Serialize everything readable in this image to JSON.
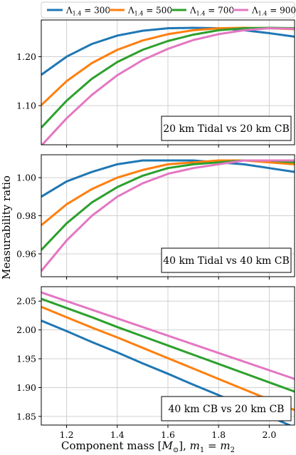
{
  "figure": {
    "ylabel": "Measurability ratio",
    "xlabel_prefix": "Component mass [",
    "xlabel_sym": "M",
    "xlabel_sub": "⊙",
    "xlabel_mid": "], ",
    "xlabel_m": "m",
    "xlabel_sub1": "1",
    "xlabel_eq": " = ",
    "xlabel_sub2": "2"
  },
  "legend": {
    "entries": [
      {
        "sym": "Λ",
        "sub": "1.4",
        "text": " = 300",
        "color": "#1f77b4"
      },
      {
        "sym": "Λ",
        "sub": "1.4",
        "text": " = 500",
        "color": "#ff7f0e"
      },
      {
        "sym": "Λ",
        "sub": "1.4",
        "text": " = 700",
        "color": "#2ca02c"
      },
      {
        "sym": "Λ",
        "sub": "1.4",
        "text": " = 900",
        "color": "#e377c2"
      }
    ]
  },
  "chart_data": [
    {
      "type": "line",
      "title": "20 km Tidal vs 20 km CB",
      "xlim": [
        1.1,
        2.1
      ],
      "ylim": [
        1.02,
        1.275
      ],
      "xticks": [
        1.2,
        1.4,
        1.6,
        1.8,
        2.0
      ],
      "xticklabels": [
        "1.2",
        "1.4",
        "1.6",
        "1.8",
        "2.0"
      ],
      "yticks": [
        1.1,
        1.2
      ],
      "yticklabels": [
        "1.10",
        "1.20"
      ],
      "grid": true,
      "annotation_position": "bottom-right",
      "x": [
        1.1,
        1.2,
        1.3,
        1.4,
        1.5,
        1.6,
        1.7,
        1.8,
        1.9,
        2.0,
        2.1
      ],
      "series": [
        {
          "name": "Λ1.4 = 300",
          "color": "#1f77b4",
          "values": [
            1.163,
            1.2,
            1.226,
            1.243,
            1.253,
            1.258,
            1.259,
            1.258,
            1.254,
            1.248,
            1.241
          ]
        },
        {
          "name": "Λ1.4 = 500",
          "color": "#ff7f0e",
          "values": [
            1.101,
            1.15,
            1.187,
            1.214,
            1.233,
            1.246,
            1.254,
            1.258,
            1.259,
            1.258,
            1.256
          ]
        },
        {
          "name": "Λ1.4 = 700",
          "color": "#2ca02c",
          "values": [
            1.055,
            1.11,
            1.155,
            1.189,
            1.214,
            1.232,
            1.245,
            1.254,
            1.258,
            1.259,
            1.258
          ]
        },
        {
          "name": "Λ1.4 = 900",
          "color": "#e377c2",
          "values": [
            1.018,
            1.074,
            1.122,
            1.162,
            1.193,
            1.216,
            1.234,
            1.246,
            1.254,
            1.258,
            1.257
          ]
        }
      ]
    },
    {
      "type": "line",
      "title": "40 km Tidal vs 40 km CB",
      "xlim": [
        1.1,
        2.1
      ],
      "ylim": [
        0.948,
        1.012
      ],
      "xticks": [
        1.2,
        1.4,
        1.6,
        1.8,
        2.0
      ],
      "xticklabels": [
        "1.2",
        "1.4",
        "1.6",
        "1.8",
        "2.0"
      ],
      "yticks": [
        0.96,
        0.98,
        1.0
      ],
      "yticklabels": [
        "0.96",
        "0.98",
        "1.00"
      ],
      "grid": true,
      "annotation_position": "bottom-right",
      "x": [
        1.1,
        1.2,
        1.3,
        1.4,
        1.5,
        1.6,
        1.7,
        1.8,
        1.9,
        2.0,
        2.1
      ],
      "series": [
        {
          "name": "Λ1.4 = 300",
          "color": "#1f77b4",
          "values": [
            0.99,
            0.998,
            1.003,
            1.007,
            1.009,
            1.009,
            1.009,
            1.008,
            1.007,
            1.005,
            1.003
          ]
        },
        {
          "name": "Λ1.4 = 500",
          "color": "#ff7f0e",
          "values": [
            0.975,
            0.986,
            0.994,
            1.0,
            1.004,
            1.007,
            1.008,
            1.009,
            1.009,
            1.008,
            1.007
          ]
        },
        {
          "name": "Λ1.4 = 700",
          "color": "#2ca02c",
          "values": [
            0.962,
            0.976,
            0.987,
            0.995,
            1.001,
            1.005,
            1.007,
            1.008,
            1.009,
            1.009,
            1.008
          ]
        },
        {
          "name": "Λ1.4 = 900",
          "color": "#e377c2",
          "values": [
            0.951,
            0.967,
            0.98,
            0.99,
            0.997,
            1.002,
            1.005,
            1.007,
            1.009,
            1.009,
            1.009
          ]
        }
      ]
    },
    {
      "type": "line",
      "title": "40 km CB vs 20 km CB",
      "xlim": [
        1.1,
        2.1
      ],
      "ylim": [
        1.835,
        2.075
      ],
      "xticks": [
        1.2,
        1.4,
        1.6,
        1.8,
        2.0
      ],
      "xticklabels": [
        "1.2",
        "1.4",
        "1.6",
        "1.8",
        "2.0"
      ],
      "yticks": [
        1.85,
        1.9,
        1.95,
        2.0,
        2.05
      ],
      "yticklabels": [
        "1.85",
        "1.90",
        "1.95",
        "2.00",
        "2.05"
      ],
      "grid": true,
      "annotation_position": "bottom-right",
      "x": [
        1.1,
        1.2,
        1.3,
        1.4,
        1.5,
        1.6,
        1.7,
        1.8,
        1.9,
        2.0,
        2.1
      ],
      "series": [
        {
          "name": "Λ1.4 = 300",
          "color": "#1f77b4",
          "values": [
            2.016,
            1.998,
            1.979,
            1.961,
            1.942,
            1.924,
            1.905,
            1.887,
            1.868,
            1.85,
            1.831
          ]
        },
        {
          "name": "Λ1.4 = 500",
          "color": "#ff7f0e",
          "values": [
            2.04,
            2.022,
            2.004,
            1.987,
            1.969,
            1.951,
            1.933,
            1.915,
            1.897,
            1.879,
            1.861
          ]
        },
        {
          "name": "Λ1.4 = 700",
          "color": "#2ca02c",
          "values": [
            2.054,
            2.038,
            2.022,
            2.005,
            1.989,
            1.973,
            1.957,
            1.941,
            1.925,
            1.909,
            1.893
          ]
        },
        {
          "name": "Λ1.4 = 900",
          "color": "#e377c2",
          "values": [
            2.065,
            2.05,
            2.035,
            2.02,
            2.005,
            1.99,
            1.975,
            1.96,
            1.945,
            1.93,
            1.915
          ]
        }
      ]
    }
  ]
}
